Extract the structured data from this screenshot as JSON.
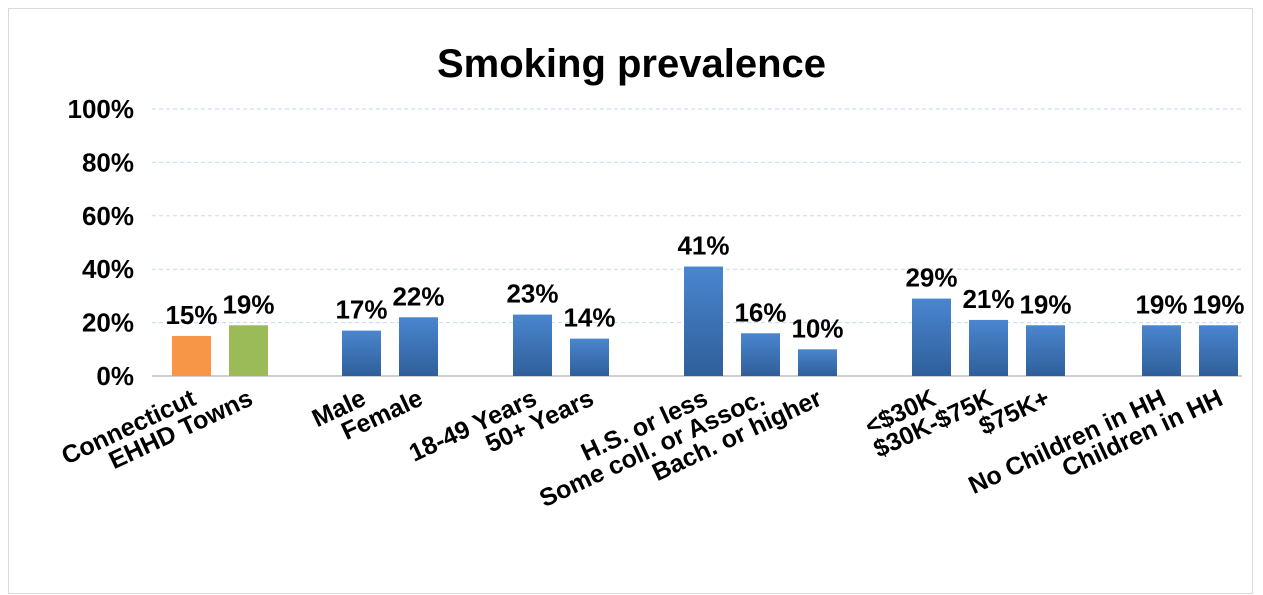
{
  "chart_data": {
    "type": "bar",
    "title": "Smoking prevalence",
    "xlabel": "",
    "ylabel": "",
    "ylim": [
      0,
      100
    ],
    "yticks": [
      "0%",
      "20%",
      "40%",
      "60%",
      "80%",
      "100%"
    ],
    "grid": true,
    "legend": "none",
    "groups": [
      {
        "categories": [
          "Connecticut",
          "EHHD Towns"
        ],
        "values": [
          15,
          19
        ],
        "labels": [
          "15%",
          "19%"
        ],
        "colors": [
          "#f79646",
          "#9bbb59"
        ]
      },
      {
        "categories": [
          "Male",
          "Female"
        ],
        "values": [
          17,
          22
        ],
        "labels": [
          "17%",
          "22%"
        ],
        "colors": [
          "#4f81bd",
          "#4f81bd"
        ]
      },
      {
        "categories": [
          "18-49 Years",
          "50+ Years"
        ],
        "values": [
          23,
          14
        ],
        "labels": [
          "23%",
          "14%"
        ],
        "colors": [
          "#4f81bd",
          "#4f81bd"
        ]
      },
      {
        "categories": [
          "H.S. or less",
          "Some coll. or Assoc.",
          "Bach. or higher"
        ],
        "values": [
          41,
          16,
          10
        ],
        "labels": [
          "41%",
          "16%",
          "10%"
        ],
        "colors": [
          "#4f81bd",
          "#4f81bd",
          "#4f81bd"
        ]
      },
      {
        "categories": [
          "<$30K",
          "$30K-$75K",
          "$75K+"
        ],
        "values": [
          29,
          21,
          19
        ],
        "labels": [
          "29%",
          "21%",
          "19%"
        ],
        "colors": [
          "#4f81bd",
          "#4f81bd",
          "#4f81bd"
        ]
      },
      {
        "categories": [
          "No Children in HH",
          "Children in HH"
        ],
        "values": [
          19,
          19
        ],
        "labels": [
          "19%",
          "19%"
        ],
        "colors": [
          "#4f81bd",
          "#4f81bd"
        ]
      }
    ]
  }
}
